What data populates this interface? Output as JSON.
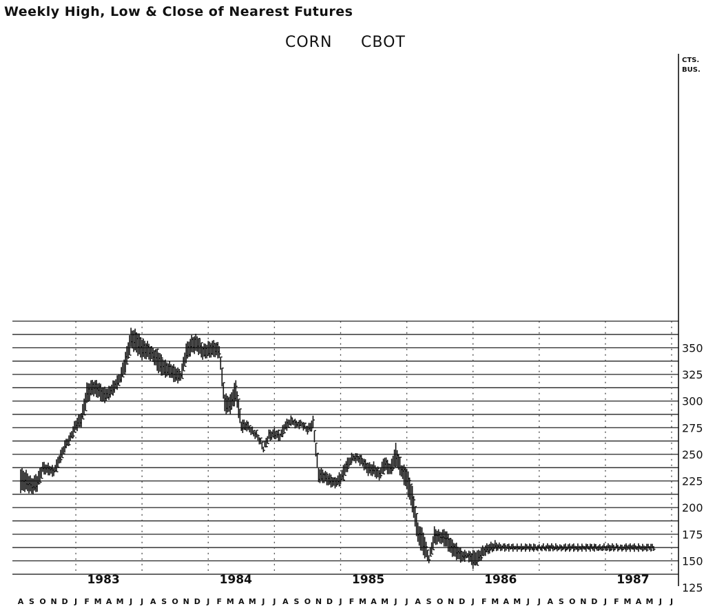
{
  "header": {
    "super_title": "Weekly High, Low & Close of Nearest Futures",
    "commodity": "CORN",
    "exchange": "CBOT"
  },
  "chart_data": {
    "type": "line",
    "title": "CORN CBOT",
    "subtitle": "Weekly High, Low & Close of Nearest Futures",
    "ylabel": "CTS. BUS.",
    "unit_lines": [
      "CTS.",
      "BUS."
    ],
    "xlabel": "",
    "ylim": [
      125,
      375
    ],
    "y_ticks": [
      125,
      150,
      175,
      200,
      225,
      250,
      275,
      300,
      325,
      350
    ],
    "grid": true,
    "x_tick_labels": [
      "A",
      "S",
      "O",
      "N",
      "D",
      "J",
      "F",
      "M",
      "A",
      "M",
      "J",
      "J",
      "A",
      "S",
      "O",
      "N",
      "D",
      "J",
      "F",
      "M",
      "A",
      "M",
      "J",
      "J",
      "A",
      "S",
      "O",
      "N",
      "D",
      "J",
      "F",
      "M",
      "A",
      "M",
      "J",
      "J",
      "A",
      "S",
      "O",
      "N",
      "D",
      "J",
      "F",
      "M",
      "A",
      "M",
      "J",
      "J",
      "A",
      "S",
      "O",
      "N",
      "D",
      "J",
      "F",
      "M",
      "A",
      "M",
      "J",
      "J"
    ],
    "years": [
      "1983",
      "1984",
      "1985",
      "1986",
      "1987"
    ],
    "year_start_index": [
      5,
      17,
      29,
      41,
      53
    ],
    "series": [
      {
        "x": [
          0,
          0.5,
          1,
          1.5,
          2,
          2.5,
          3,
          3.5,
          4,
          4.5,
          5,
          5.5,
          6,
          6.5,
          7,
          7.5,
          8,
          8.5,
          9,
          9.5,
          10,
          10.5,
          11,
          11.5,
          12,
          12.5,
          13,
          13.5,
          14,
          14.5,
          15,
          15.5,
          16,
          16.5,
          17,
          17.5,
          18,
          18.5,
          19,
          19.5,
          20,
          20.5,
          21,
          21.5,
          22,
          22.5,
          23,
          23.5,
          24,
          24.5,
          25,
          25.5,
          26,
          26.5,
          27,
          27.5,
          28,
          28.5,
          29,
          29.5,
          30,
          30.5,
          31,
          31.5,
          32,
          32.5,
          33,
          33.5,
          34,
          34.5,
          35,
          35.5,
          36,
          36.5,
          37,
          37.5,
          38,
          38.5,
          39,
          39.5,
          40,
          40.5,
          41,
          41.5,
          42,
          42.5,
          43,
          43.5,
          44,
          44.5,
          45,
          45.5,
          46,
          46.5,
          47,
          47.5,
          48,
          48.5,
          49,
          49.5,
          50,
          50.5,
          51,
          51.5,
          52,
          52.5,
          53,
          53.5,
          54,
          54.5,
          55,
          55.5,
          56,
          56.5,
          57
        ],
        "high": [
          236,
          234,
          228,
          231,
          242,
          241,
          238,
          250,
          262,
          270,
          283,
          289,
          316,
          320,
          318,
          312,
          313,
          320,
          326,
          345,
          368,
          366,
          358,
          355,
          350,
          347,
          338,
          336,
          333,
          328,
          353,
          361,
          362,
          352,
          355,
          357,
          353,
          306,
          305,
          320,
          282,
          281,
          275,
          270,
          258,
          272,
          274,
          271,
          281,
          285,
          282,
          281,
          276,
          285,
          238,
          234,
          231,
          228,
          233,
          244,
          250,
          251,
          247,
          241,
          242,
          236,
          248,
          240,
          260,
          241,
          237,
          219,
          186,
          178,
          155,
          181,
          178,
          179,
          170,
          166,
          160,
          158,
          159,
          160,
          164,
          166,
          168,
          166,
          165,
          165,
          165,
          165,
          165,
          165,
          165,
          165,
          165,
          165,
          165,
          165,
          165,
          165,
          165,
          165,
          165,
          165,
          165,
          165,
          165,
          165,
          165,
          165,
          165,
          165,
          165
        ],
        "low": [
          215,
          216,
          213,
          216,
          232,
          231,
          230,
          240,
          253,
          262,
          272,
          277,
          297,
          306,
          304,
          298,
          302,
          308,
          316,
          328,
          350,
          345,
          340,
          340,
          337,
          327,
          323,
          323,
          318,
          318,
          337,
          345,
          346,
          340,
          341,
          342,
          341,
          289,
          289,
          300,
          271,
          273,
          268,
          263,
          253,
          263,
          265,
          263,
          272,
          278,
          275,
          275,
          270,
          274,
          224,
          224,
          220,
          219,
          222,
          232,
          243,
          243,
          238,
          231,
          230,
          226,
          235,
          230,
          240,
          229,
          216,
          197,
          167,
          155,
          149,
          165,
          167,
          164,
          156,
          152,
          149,
          152,
          144,
          148,
          155,
          158,
          160,
          160,
          160,
          160,
          160,
          160,
          160,
          160,
          160,
          160,
          160,
          160,
          160,
          160,
          160,
          160,
          160,
          160,
          160,
          160,
          160,
          160,
          160,
          160,
          160,
          160,
          160,
          160,
          160
        ],
        "close": [
          225,
          222,
          219,
          223,
          237,
          236,
          234,
          246,
          258,
          266,
          278,
          284,
          309,
          314,
          312,
          305,
          308,
          314,
          321,
          338,
          359,
          355,
          349,
          348,
          344,
          336,
          330,
          329,
          325,
          322,
          347,
          354,
          355,
          346,
          348,
          350,
          347,
          298,
          297,
          309,
          276,
          277,
          271,
          266,
          255,
          268,
          270,
          267,
          277,
          282,
          279,
          278,
          273,
          280,
          229,
          229,
          226,
          223,
          228,
          239,
          247,
          247,
          242,
          236,
          236,
          231,
          242,
          236,
          248,
          235,
          226,
          208,
          175,
          163,
          151,
          174,
          172,
          171,
          163,
          158,
          154,
          155,
          147,
          154,
          160,
          161,
          163,
          163,
          162,
          162,
          162,
          162,
          162,
          162,
          162,
          162,
          162,
          162,
          162,
          162,
          162,
          162,
          162,
          162,
          162,
          162,
          162,
          162,
          162,
          162,
          162,
          162,
          162,
          162,
          162
        ]
      }
    ]
  }
}
